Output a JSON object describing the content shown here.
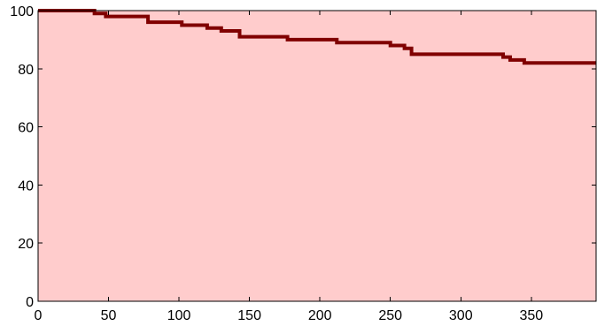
{
  "chart_data": {
    "type": "line",
    "title": "",
    "xlabel": "",
    "ylabel": "",
    "xlim": [
      0,
      396
    ],
    "ylim": [
      0,
      100
    ],
    "x_ticks": [
      0,
      50,
      100,
      150,
      200,
      250,
      300,
      350
    ],
    "y_ticks": [
      0,
      20,
      40,
      60,
      80,
      100
    ],
    "grid": false,
    "background_color": "#ffcccc",
    "series": [
      {
        "style": "step",
        "color": "#800000",
        "x": [
          0,
          40,
          48,
          78,
          102,
          120,
          130,
          143,
          177,
          212,
          242,
          250,
          260,
          265,
          300,
          330,
          335,
          345,
          396
        ],
        "y": [
          100,
          99,
          98,
          96,
          95,
          94,
          93,
          91,
          90,
          89,
          89,
          88,
          87,
          85,
          85,
          84,
          83,
          82,
          82
        ]
      }
    ]
  }
}
